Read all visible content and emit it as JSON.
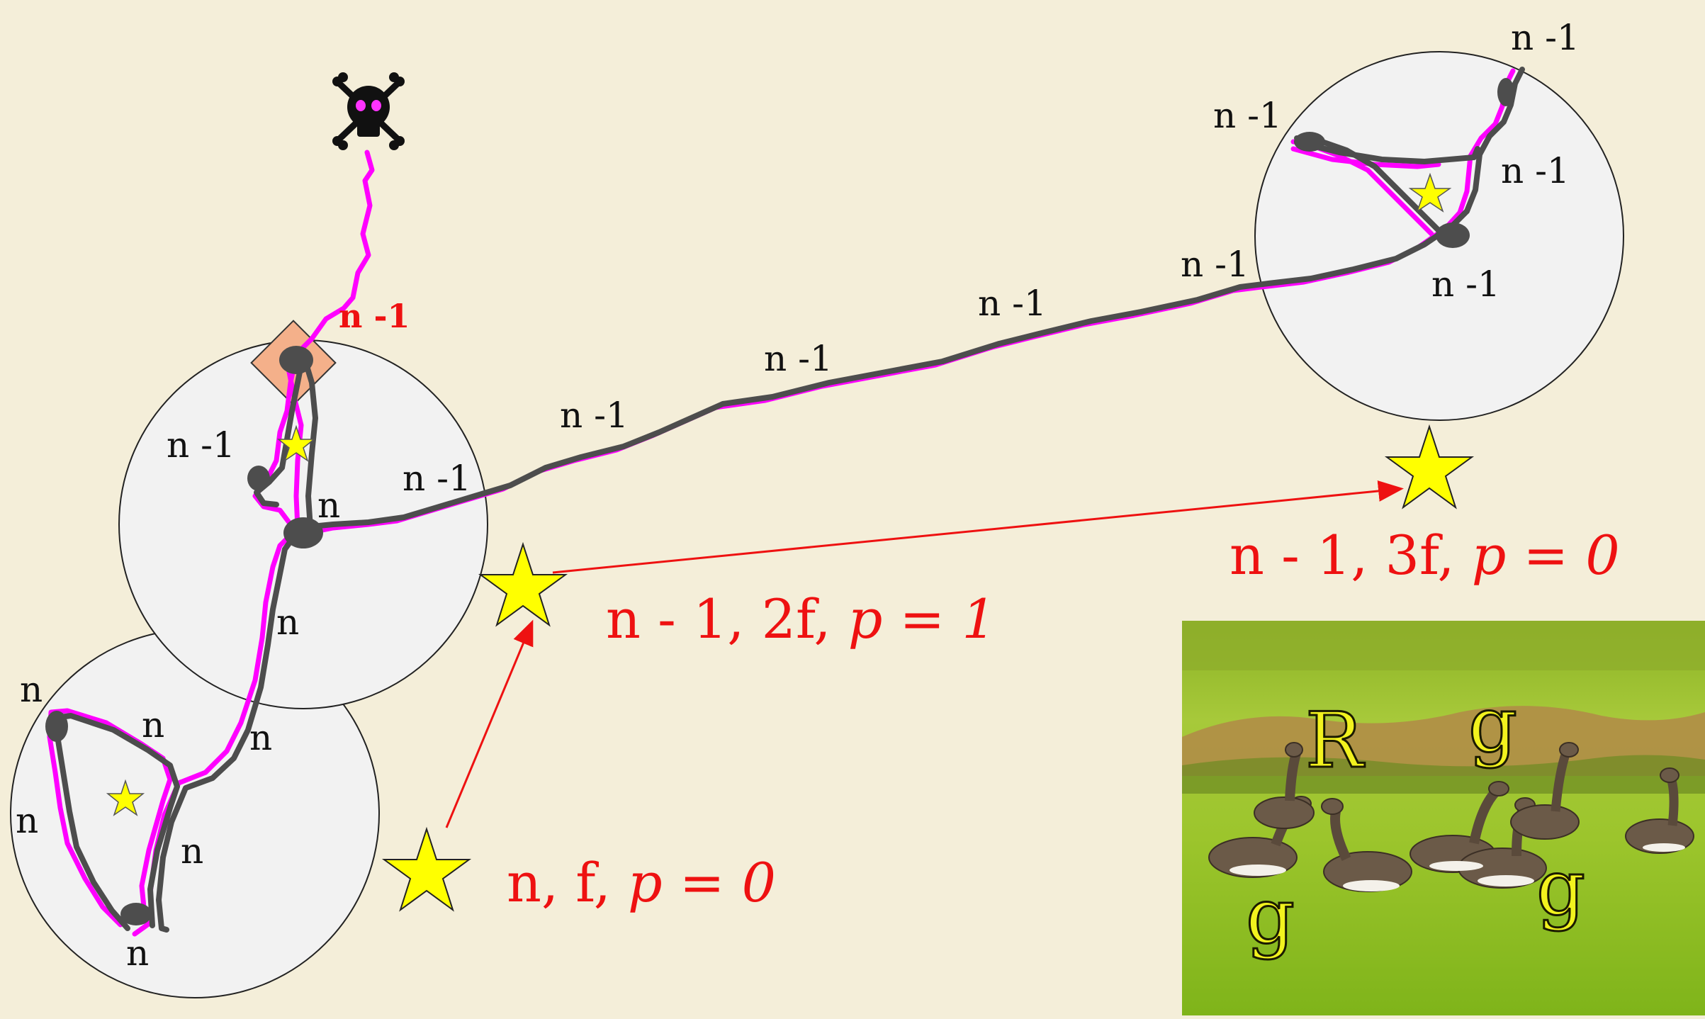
{
  "track_labels": {
    "n_minus_1": "n -1",
    "n": "n",
    "highlight": "n -1"
  },
  "site_labels": {
    "site1": {
      "n": "n",
      "f": "f",
      "sep": ", ",
      "p_eq": "p = 0"
    },
    "site2": {
      "n": "n - 1",
      "f": "2f",
      "sep": ", ",
      "p_eq": "p = 1"
    },
    "site3": {
      "n": "n - 1",
      "f": "3f",
      "sep": ", ",
      "p_eq": "p = 0"
    }
  },
  "photo": {
    "letter_R": "R",
    "letter_g": "g"
  },
  "colors": {
    "background": "#f4eed9",
    "circle_fill": "#f2f2f2",
    "track_gray": "#4d4d4d",
    "track_magenta": "#ff00ff",
    "arrow_red": "#ee1111",
    "star_yellow": "#ffff00",
    "diamond_orange": "#f4b08a"
  },
  "icons": {
    "death": "skull-crossbones-icon",
    "site": "star-icon"
  }
}
